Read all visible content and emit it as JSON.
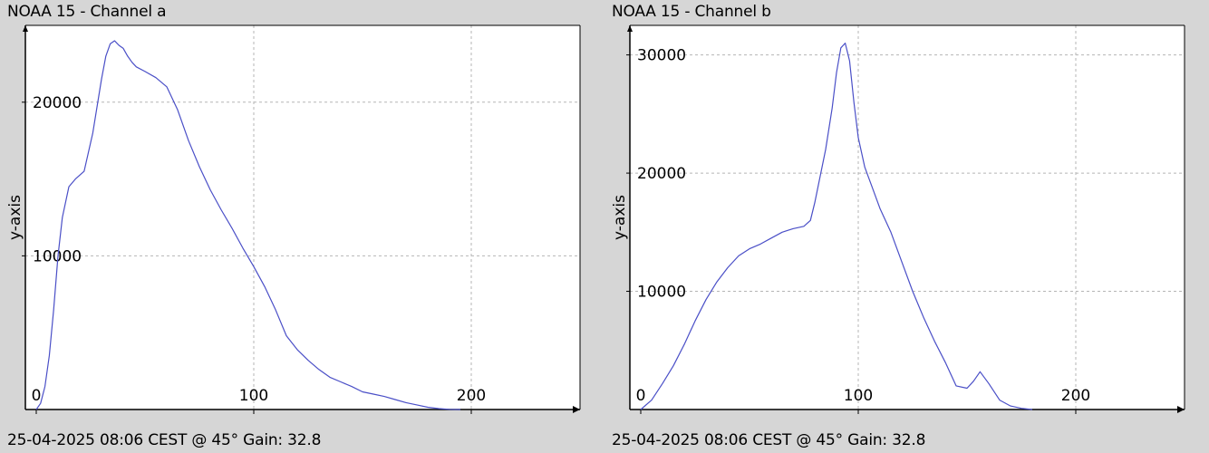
{
  "chart_data": [
    {
      "type": "line",
      "title": "NOAA 15 - Channel a",
      "footer": "25-04-2025 08:06 CEST @ 45° Gain: 32.8",
      "xlabel": "",
      "ylabel": "y-axis",
      "xlim": [
        -5,
        250
      ],
      "ylim": [
        0,
        25000
      ],
      "x_ticks": [
        0,
        100,
        200
      ],
      "y_ticks": [
        10000,
        20000
      ],
      "grid": true,
      "line_color": "#4a4fc7",
      "series": [
        {
          "x": [
            0,
            2,
            4,
            6,
            8,
            10,
            12,
            15,
            18,
            22,
            26,
            30,
            32,
            34,
            36,
            38,
            40,
            42,
            44,
            46,
            50,
            55,
            60,
            65,
            70,
            75,
            80,
            85,
            90,
            95,
            100,
            105,
            110,
            115,
            120,
            125,
            130,
            135,
            140,
            145,
            150,
            155,
            160,
            165,
            170,
            175,
            180,
            185,
            190,
            195
          ],
          "y": [
            0,
            400,
            1500,
            3500,
            6500,
            10000,
            12500,
            14500,
            15000,
            15500,
            18000,
            21500,
            23000,
            23800,
            24000,
            23700,
            23500,
            23000,
            22600,
            22300,
            22000,
            21600,
            21000,
            19500,
            17500,
            15800,
            14300,
            13000,
            11800,
            10500,
            9300,
            8000,
            6500,
            4800,
            3900,
            3200,
            2600,
            2100,
            1800,
            1500,
            1150,
            1000,
            850,
            650,
            450,
            300,
            150,
            60,
            10,
            0
          ]
        }
      ]
    },
    {
      "type": "line",
      "title": "NOAA 15 - Channel b",
      "footer": "25-04-2025 08:06 CEST @ 45° Gain: 32.8",
      "xlabel": "",
      "ylabel": "y-axis",
      "xlim": [
        -5,
        250
      ],
      "ylim": [
        0,
        32500
      ],
      "x_ticks": [
        0,
        100,
        200
      ],
      "y_ticks": [
        10000,
        20000,
        30000
      ],
      "grid": true,
      "line_color": "#4a4fc7",
      "series": [
        {
          "x": [
            0,
            5,
            10,
            15,
            20,
            25,
            30,
            35,
            40,
            45,
            50,
            55,
            60,
            65,
            70,
            75,
            78,
            80,
            85,
            88,
            90,
            92,
            94,
            96,
            98,
            100,
            103,
            106,
            110,
            115,
            120,
            125,
            130,
            135,
            140,
            145,
            150,
            153,
            156,
            160,
            165,
            170,
            175,
            180
          ],
          "y": [
            0,
            800,
            2200,
            3700,
            5500,
            7500,
            9300,
            10800,
            12000,
            13000,
            13600,
            14000,
            14500,
            15000,
            15300,
            15500,
            16000,
            17500,
            22000,
            25500,
            28500,
            30600,
            31000,
            29500,
            26000,
            23000,
            20500,
            19000,
            17000,
            15000,
            12500,
            10000,
            7800,
            5800,
            4000,
            2000,
            1800,
            2400,
            3200,
            2200,
            800,
            300,
            100,
            0
          ]
        }
      ]
    }
  ]
}
